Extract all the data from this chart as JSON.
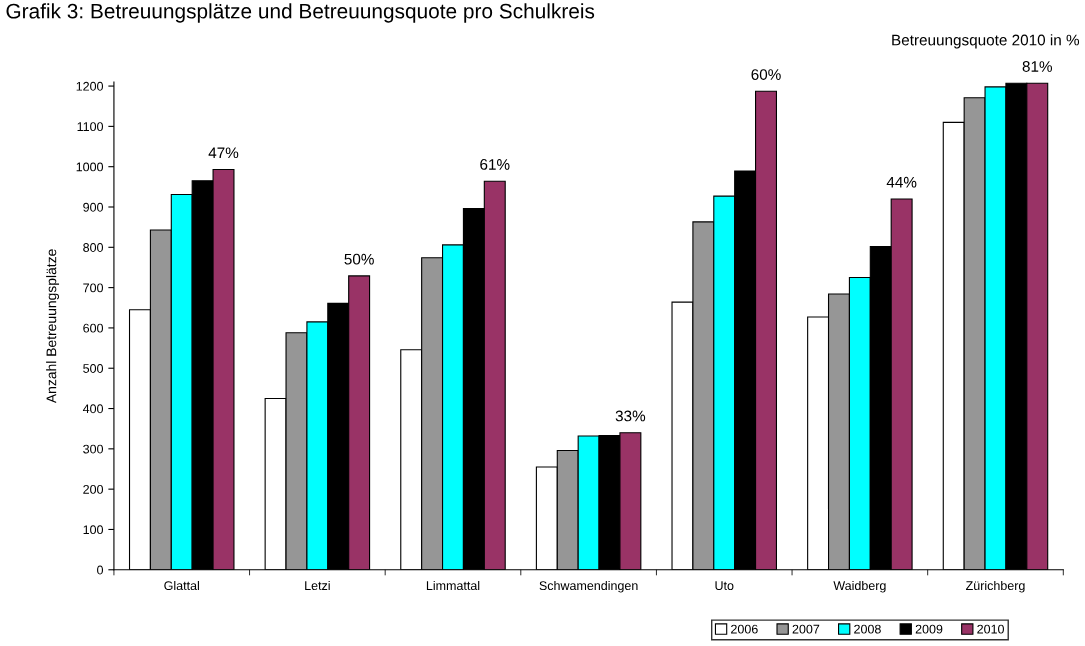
{
  "chart_data": {
    "type": "bar",
    "title": "Grafik 3: Betreuungsplätze und Betreuungsquote pro Schulkreis",
    "ylabel": "Anzahl Betreuungsplätze",
    "categories": [
      "Glattal",
      "Letzi",
      "Limmattal",
      "Schwamendingen",
      "Uto",
      "Waidberg",
      "Zürichberg"
    ],
    "series": [
      {
        "name": "2006",
        "color": "#ffffff",
        "values": [
          645,
          425,
          546,
          255,
          664,
          627,
          1110
        ]
      },
      {
        "name": "2007",
        "color": "#969696",
        "values": [
          843,
          588,
          774,
          296,
          863,
          684,
          1171
        ]
      },
      {
        "name": "2008",
        "color": "#00ffff",
        "values": [
          931,
          615,
          806,
          332,
          927,
          725,
          1198
        ]
      },
      {
        "name": "2009",
        "color": "#000000",
        "values": [
          965,
          661,
          896,
          333,
          989,
          802,
          1207
        ]
      },
      {
        "name": "2010",
        "color": "#993366",
        "values": [
          993,
          729,
          964,
          340,
          1187,
          920,
          1207
        ]
      }
    ],
    "ylim": [
      0,
      1210
    ],
    "yticks": [
      0,
      100,
      200,
      300,
      400,
      500,
      600,
      700,
      800,
      900,
      1000,
      1100,
      1200
    ],
    "grid": false,
    "legend": "bottom right",
    "annotations": [
      "Betreuungsquote 2010 in %",
      "47%",
      "50%",
      "61%",
      "33%",
      "60%",
      "44%",
      "81%"
    ]
  }
}
